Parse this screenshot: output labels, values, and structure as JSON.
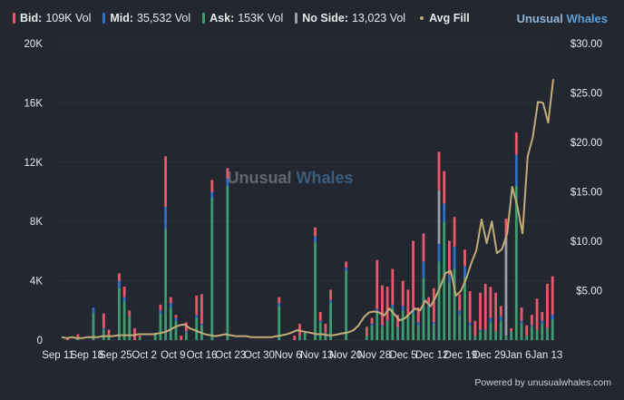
{
  "legend": [
    {
      "name": "Bid:",
      "value": "109K Vol",
      "color": "#e8576a",
      "kind": "bar"
    },
    {
      "name": "Mid:",
      "value": "35,532 Vol",
      "color": "#2f6fc7",
      "kind": "bar"
    },
    {
      "name": "Ask:",
      "value": "153K Vol",
      "color": "#3e9a70",
      "kind": "bar"
    },
    {
      "name": "No Side:",
      "value": "13,023 Vol",
      "color": "#9aa0a8",
      "kind": "bar"
    },
    {
      "name": "Avg Fill",
      "value": "",
      "color": "#c2ad78",
      "kind": "line"
    }
  ],
  "brand": {
    "part1": "Unusual",
    "part2": "Whales"
  },
  "watermark": {
    "part1": "Unusual",
    "part2": "Whales"
  },
  "footer": "Powered by unusualwhales.com",
  "colors": {
    "bid": "#e8576a",
    "mid": "#2f6fc7",
    "ask": "#3e9a70",
    "noside": "#9aa0a8",
    "line": "#c2ad78",
    "grid": "#2e323b"
  },
  "chart_data": {
    "type": "bar",
    "title": "",
    "x_labels": [
      "Sep 11",
      "Sep 18",
      "Sep 25",
      "Oct 2",
      "Oct 9",
      "Oct 16",
      "Oct 23",
      "Oct 30",
      "Nov 6",
      "Nov 13",
      "Nov 20",
      "Nov 28",
      "Dec 5",
      "Dec 12",
      "Dec 19",
      "Dec 29",
      "Jan 6",
      "Jan 13"
    ],
    "y_left_ticks": [
      "0",
      "4K",
      "8K",
      "12K",
      "16K",
      "20K"
    ],
    "y_left_range": [
      0,
      20000
    ],
    "y_right_ticks": [
      "$5.00",
      "$10.00",
      "$15.00",
      "$20.00",
      "$25.00",
      "$30.00"
    ],
    "y_right_range": [
      0,
      30
    ],
    "series": [
      {
        "name": "Ask",
        "stack": [
          0,
          0,
          0,
          200,
          0,
          0,
          1800,
          0,
          700,
          300,
          0,
          3500,
          2600,
          1600,
          0,
          200,
          0,
          0,
          500,
          1800,
          7500,
          2200,
          1300,
          0,
          500,
          0,
          1500,
          1000,
          0,
          9600,
          0,
          0,
          10400,
          0,
          0,
          0,
          0,
          0,
          0,
          0,
          0,
          0,
          2300,
          0,
          0,
          0,
          300,
          500,
          0,
          6600,
          1200,
          500,
          2500,
          0,
          0,
          4700,
          0,
          0,
          0,
          300,
          1000,
          1900,
          900,
          1300,
          2200,
          900,
          2000,
          1700,
          1800,
          1000,
          4200,
          2200,
          1100,
          5300,
          8000,
          3900,
          4800,
          1700,
          4300,
          1000,
          300,
          600,
          700,
          1200,
          600,
          1300,
          300,
          600,
          10400,
          1100,
          300,
          900,
          700,
          1100,
          800,
          1400
        ]
      },
      {
        "name": "Mid",
        "stack": [
          0,
          0,
          0,
          0,
          0,
          0,
          400,
          0,
          100,
          0,
          0,
          500,
          300,
          0,
          0,
          0,
          0,
          0,
          0,
          200,
          1500,
          300,
          200,
          0,
          100,
          0,
          200,
          100,
          0,
          400,
          0,
          0,
          500,
          0,
          0,
          0,
          0,
          0,
          0,
          0,
          0,
          0,
          200,
          0,
          0,
          0,
          0,
          0,
          0,
          400,
          100,
          0,
          200,
          0,
          0,
          200,
          0,
          0,
          0,
          0,
          100,
          200,
          100,
          0,
          200,
          0,
          300,
          0,
          300,
          200,
          1100,
          300,
          100,
          1200,
          1200,
          500,
          1500,
          300,
          700,
          200,
          0,
          100,
          0,
          300,
          0,
          300,
          0,
          0,
          2100,
          200,
          0,
          100,
          0,
          200,
          0,
          300
        ]
      },
      {
        "name": "NoSide",
        "stack": [
          0,
          0,
          0,
          0,
          0,
          0,
          0,
          0,
          0,
          0,
          0,
          0,
          0,
          0,
          0,
          0,
          0,
          0,
          0,
          0,
          0,
          0,
          0,
          0,
          0,
          0,
          0,
          0,
          0,
          0,
          0,
          0,
          0,
          0,
          0,
          0,
          0,
          0,
          0,
          0,
          0,
          0,
          0,
          0,
          0,
          0,
          0,
          0,
          0,
          0,
          0,
          0,
          0,
          0,
          0,
          0,
          0,
          0,
          0,
          0,
          0,
          0,
          0,
          0,
          0,
          0,
          0,
          0,
          0,
          0,
          0,
          0,
          0,
          3600,
          0,
          0,
          0,
          0,
          0,
          0,
          0,
          0,
          0,
          0,
          0,
          0,
          6700,
          0,
          0,
          0,
          0,
          0,
          0,
          0,
          0,
          0
        ]
      },
      {
        "name": "Bid",
        "stack": [
          0,
          200,
          0,
          200,
          0,
          0,
          0,
          0,
          1000,
          400,
          0,
          500,
          700,
          400,
          800,
          100,
          0,
          0,
          0,
          400,
          3400,
          400,
          200,
          300,
          600,
          0,
          1300,
          2000,
          0,
          800,
          0,
          0,
          700,
          0,
          0,
          0,
          0,
          0,
          0,
          0,
          0,
          0,
          400,
          0,
          0,
          300,
          800,
          0,
          0,
          600,
          600,
          600,
          700,
          0,
          0,
          400,
          0,
          0,
          0,
          600,
          400,
          3300,
          2700,
          2300,
          2400,
          800,
          1700,
          1700,
          4600,
          1000,
          1900,
          400,
          2300,
          2600,
          2200,
          2300,
          2000,
          1100,
          1100,
          2100,
          1000,
          2500,
          3100,
          2100,
          2600,
          700,
          1200,
          200,
          1500,
          900,
          700,
          700,
          2100,
          600,
          3000,
          2600
        ]
      },
      {
        "name": "Avg Fill",
        "type": "line",
        "values": [
          0.3,
          0.2,
          0.3,
          0.2,
          0.2,
          0.3,
          0.3,
          0.3,
          0.4,
          0.4,
          0.4,
          0.5,
          0.5,
          0.5,
          0.5,
          0.6,
          0.6,
          0.6,
          0.6,
          0.7,
          0.8,
          1.0,
          1.3,
          1.5,
          1.6,
          1.2,
          1.0,
          0.8,
          0.6,
          0.5,
          0.4,
          0.5,
          0.6,
          0.5,
          0.4,
          0.4,
          0.4,
          0.3,
          0.3,
          0.3,
          0.3,
          0.3,
          0.4,
          0.5,
          0.6,
          0.8,
          1.0,
          0.9,
          0.8,
          0.7,
          0.6,
          0.6,
          0.5,
          0.5,
          0.6,
          0.7,
          0.8,
          1.0,
          1.5,
          2.3,
          2.8,
          2.9,
          2.8,
          2.5,
          3.2,
          2.6,
          2.0,
          2.2,
          2.7,
          3.2,
          3.0,
          4.0,
          3.4,
          4.3,
          5.5,
          6.8,
          7.0,
          4.5,
          5.0,
          6.2,
          7.8,
          9.1,
          12.2,
          9.8,
          12.0,
          8.8,
          9.2,
          10.8,
          15.5,
          13.5,
          10.8,
          18.6,
          20.5,
          24.1,
          24.0,
          22.0,
          26.4
        ]
      }
    ]
  }
}
